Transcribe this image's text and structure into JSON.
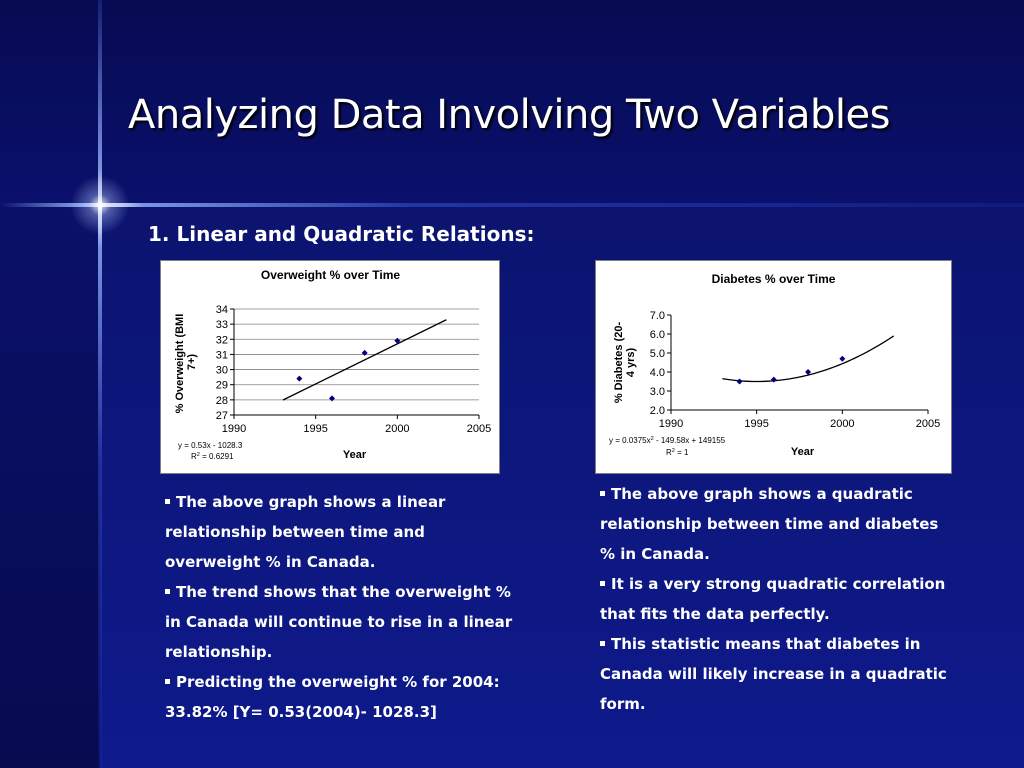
{
  "slide": {
    "title": "Analyzing Data Involving Two  Variables",
    "subtitle": "1. Linear and Quadratic Relations:"
  },
  "left_text": [
    "The above graph shows a linear relationship between time and overweight % in Canada.",
    "The trend shows that the overweight % in Canada will continue to rise in a linear relationship.",
    "Predicting the overweight % for 2004: 33.82%  [Y= 0.53(2004)- 1028.3]"
  ],
  "right_text": [
    "The above graph shows a quadratic relationship between time and diabetes % in Canada.",
    "It is a very strong quadratic correlation that fits the data perfectly.",
    "This statistic means that diabetes in Canada will likely increase in a quadratic form."
  ],
  "chart_data": [
    {
      "type": "scatter",
      "title": "Overweight % over Time",
      "xlabel": "Year",
      "ylabel": "% Overweight (BMI 27+)",
      "xlim": [
        1990,
        2005
      ],
      "ylim": [
        27,
        34
      ],
      "xticks": [
        "1990",
        "1995",
        "2000",
        "2005"
      ],
      "yticks": [
        "27",
        "28",
        "29",
        "30",
        "31",
        "32",
        "33",
        "34"
      ],
      "points": [
        {
          "x": 1994,
          "y": 29.4
        },
        {
          "x": 1996,
          "y": 28.1
        },
        {
          "x": 1998,
          "y": 31.1
        },
        {
          "x": 2000,
          "y": 31.9
        }
      ],
      "trendline": {
        "type": "linear",
        "x_range": [
          1993,
          2003
        ],
        "coef": [
          0.53,
          -1028.3
        ]
      },
      "equation": "y = 0.53x - 1028.3",
      "r2_base": "R",
      "r2_exp": "2",
      "r2_rest": " = 0.6291",
      "grid": true,
      "marker_color": "#000080"
    },
    {
      "type": "scatter",
      "title": "Diabetes % over Time",
      "xlabel": "Year",
      "ylabel": "% Diabetes (20-64 yrs)",
      "xlim": [
        1990,
        2005
      ],
      "ylim": [
        2.0,
        7.0
      ],
      "xticks": [
        "1990",
        "1995",
        "2000",
        "2005"
      ],
      "yticks": [
        "2.0",
        "3.0",
        "4.0",
        "5.0",
        "6.0",
        "7.0"
      ],
      "points": [
        {
          "x": 1994,
          "y": 3.5
        },
        {
          "x": 1996,
          "y": 3.6
        },
        {
          "x": 1998,
          "y": 4.0
        },
        {
          "x": 2000,
          "y": 4.7
        }
      ],
      "trendline": {
        "type": "quadratic",
        "x_range": [
          1993,
          2003
        ],
        "center_x": 1995,
        "center_y": 3.5,
        "a": 0.0375
      },
      "equation_pre": "y = 0.0375x",
      "equation_exp": "2",
      "equation_post": " - 149.58x + 149155",
      "r2_base": "R",
      "r2_exp": "2",
      "r2_rest": " = 1",
      "grid": false,
      "marker_color": "#000080"
    }
  ]
}
